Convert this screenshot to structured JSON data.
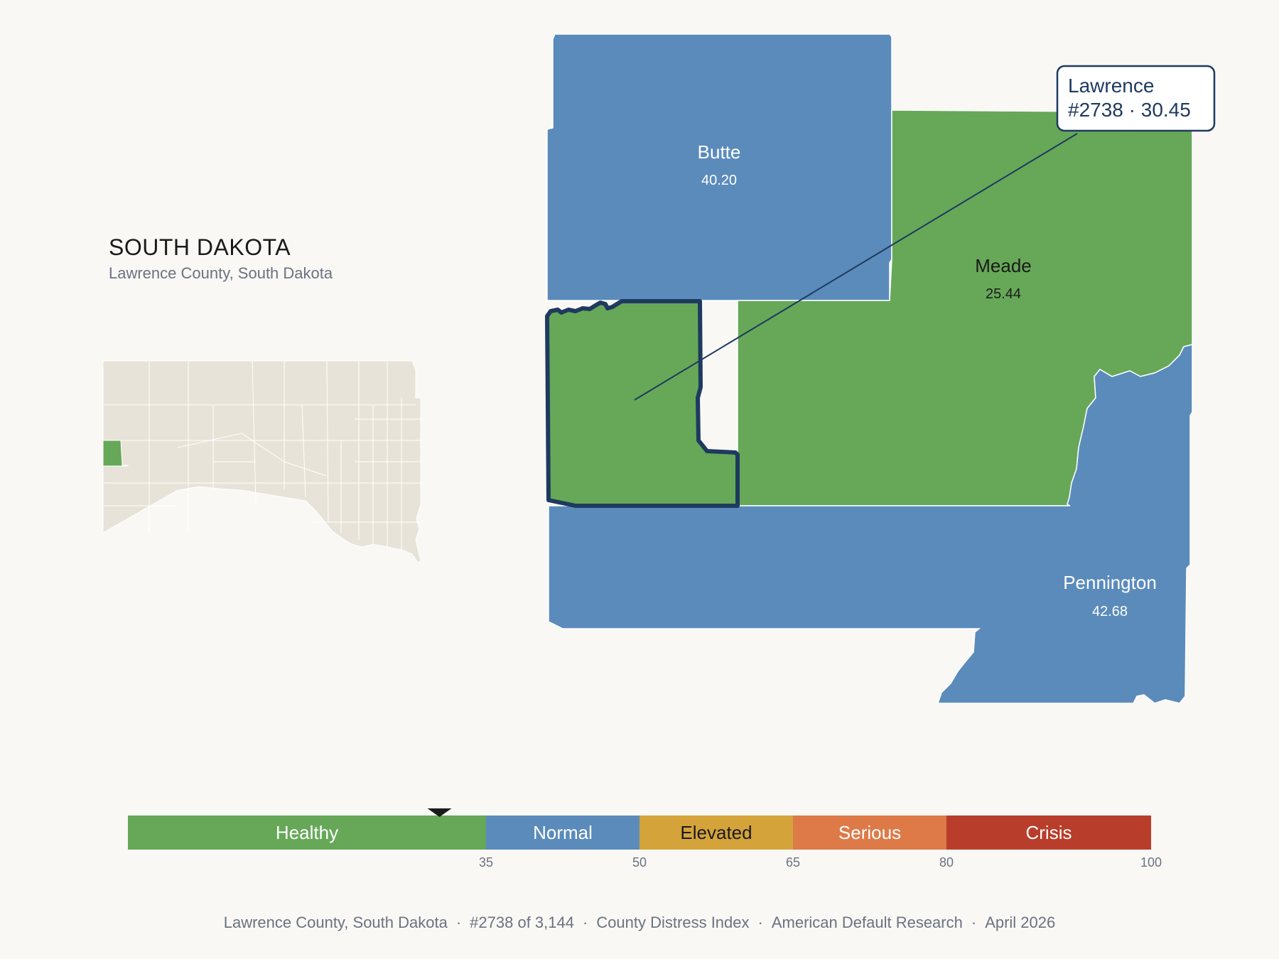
{
  "header": {
    "state_title": "SOUTH DAKOTA",
    "subtitle": "Lawrence County, South Dakota"
  },
  "colors": {
    "healthy": "#66a858",
    "normal": "#5b8bbb",
    "elevated": "#d4a33a",
    "serious": "#dd7a48",
    "crisis": "#b93d2b",
    "highlight_outline": "#1e3a5f",
    "inset_fill": "#e8e3d8"
  },
  "counties": [
    {
      "name": "Butte",
      "value": "40.20",
      "category": "Normal"
    },
    {
      "name": "Meade",
      "value": "25.44",
      "category": "Healthy"
    },
    {
      "name": "Pennington",
      "value": "42.68",
      "category": "Normal"
    },
    {
      "name": "Lawrence",
      "value": "30.45",
      "category": "Healthy",
      "highlighted": true
    }
  ],
  "callout": {
    "name": "Lawrence",
    "rank_value": "#2738 · 30.45"
  },
  "legend": {
    "segments": [
      {
        "label": "Healthy",
        "from": 0,
        "to": 35
      },
      {
        "label": "Normal",
        "from": 35,
        "to": 50
      },
      {
        "label": "Elevated",
        "from": 50,
        "to": 65
      },
      {
        "label": "Serious",
        "from": 65,
        "to": 80
      },
      {
        "label": "Crisis",
        "from": 80,
        "to": 100
      }
    ],
    "ticks": [
      "35",
      "50",
      "65",
      "80",
      "100"
    ],
    "marker_value": 30.45
  },
  "footer": {
    "items": [
      "Lawrence County, South Dakota",
      "#2738 of 3,144",
      "County Distress Index",
      "American Default Research",
      "April 2026"
    ]
  }
}
